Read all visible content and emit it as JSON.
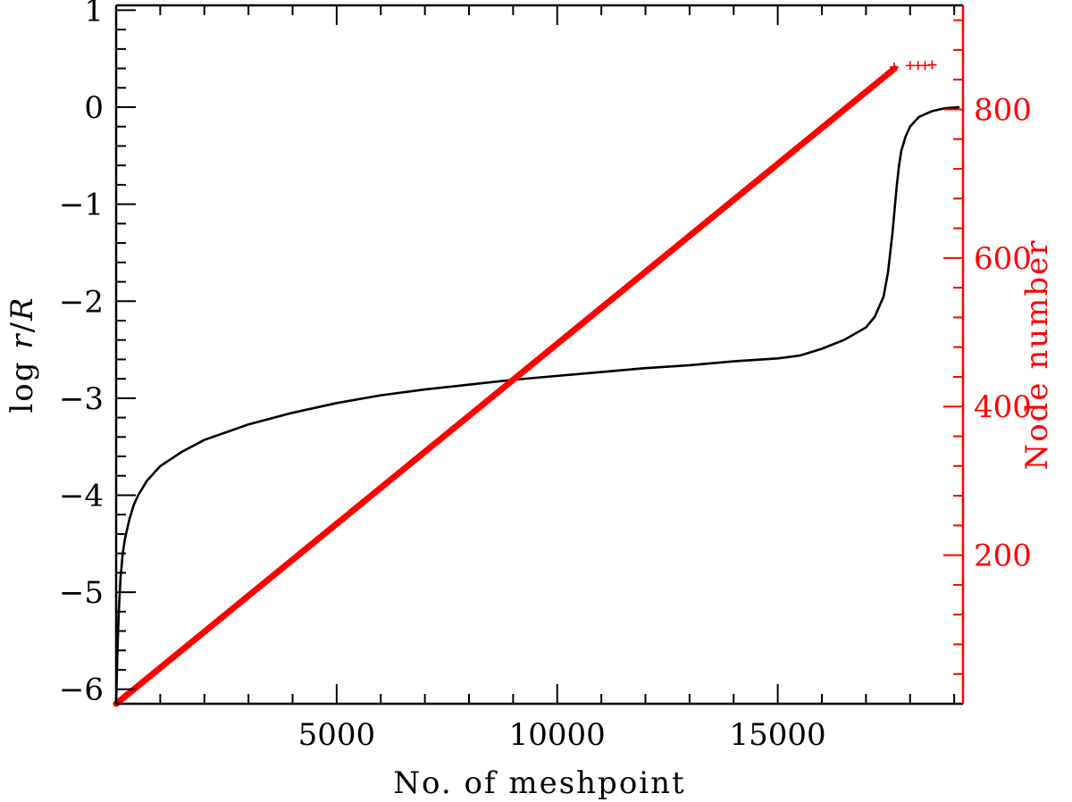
{
  "chart_data": {
    "type": "line",
    "xlabel": "No. of meshpoint",
    "ylabel_left": "log r/R",
    "ylabel_right": "Node number",
    "colors": {
      "left_axis": "#000000",
      "right_axis": "#ff0000",
      "series_radius": "#000000",
      "series_nodes": "#ff0000"
    },
    "xlim": [
      0,
      19200
    ],
    "ylim_left": [
      -6.15,
      1.05
    ],
    "ylim_right": [
      0,
      940
    ],
    "x_ticks": [
      5000,
      10000,
      15000
    ],
    "x_tick_labels": [
      "5000",
      "10000",
      "15000"
    ],
    "y_left_ticks": [
      1,
      0,
      -1,
      -2,
      -3,
      -4,
      -5,
      -6
    ],
    "y_left_tick_labels": [
      "1",
      "0",
      "−1",
      "−2",
      "−3",
      "−4",
      "−5",
      "−6"
    ],
    "y_right_ticks": [
      200,
      400,
      600,
      800
    ],
    "y_right_tick_labels": [
      "200",
      "400",
      "600",
      "800"
    ],
    "grid": false,
    "series": [
      {
        "axis": "left",
        "style": "line",
        "x": [
          0,
          30,
          60,
          100,
          150,
          200,
          300,
          400,
          500,
          700,
          1000,
          1500,
          2000,
          3000,
          4000,
          5000,
          6000,
          7000,
          8000,
          9000,
          10000,
          11000,
          12000,
          13000,
          14000,
          15000,
          15500,
          16000,
          16500,
          17000,
          17200,
          17400,
          17500,
          17600,
          17650,
          17700,
          17750,
          17800,
          17900,
          18000,
          18200,
          18500,
          18800,
          19100
        ],
        "values": [
          -6.15,
          -5.6,
          -5.2,
          -4.85,
          -4.6,
          -4.45,
          -4.25,
          -4.1,
          -4.0,
          -3.85,
          -3.7,
          -3.55,
          -3.43,
          -3.27,
          -3.15,
          -3.05,
          -2.97,
          -2.91,
          -2.86,
          -2.81,
          -2.77,
          -2.73,
          -2.69,
          -2.66,
          -2.62,
          -2.59,
          -2.56,
          -2.49,
          -2.4,
          -2.27,
          -2.16,
          -1.95,
          -1.7,
          -1.3,
          -1.05,
          -0.8,
          -0.6,
          -0.45,
          -0.3,
          -0.2,
          -0.1,
          -0.04,
          -0.01,
          0.0
        ]
      },
      {
        "axis": "right",
        "style": "thick-line",
        "x": [
          0,
          17650
        ],
        "values": [
          0,
          855
        ]
      },
      {
        "axis": "right",
        "style": "plus-markers",
        "x": [
          17640,
          18000,
          18180,
          18340,
          18500
        ],
        "values": [
          857,
          859,
          859,
          859,
          860
        ]
      }
    ]
  }
}
